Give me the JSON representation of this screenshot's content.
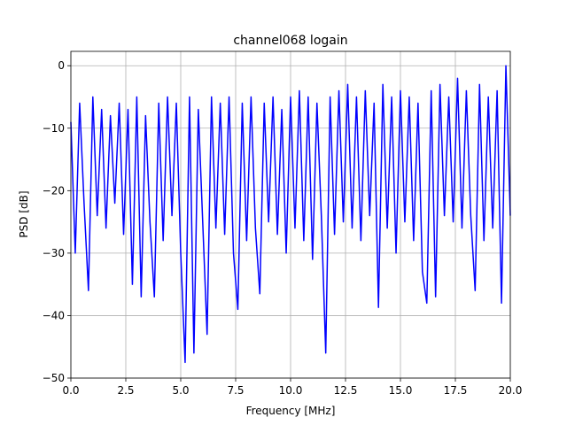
{
  "chart_data": {
    "type": "line",
    "title": "channel068 logain",
    "xlabel": "Frequency [MHz]",
    "ylabel": "PSD [dB]",
    "color": "#0000ff",
    "grid": true,
    "x": [
      0,
      0.2,
      0.4,
      0.6,
      0.8,
      1.0,
      1.2,
      1.4,
      1.6,
      1.8,
      2.0,
      2.2,
      2.4,
      2.6,
      2.8,
      3.0,
      3.2,
      3.4,
      3.6,
      3.8,
      4.0,
      4.2,
      4.4,
      4.6,
      4.8,
      5.0,
      5.2,
      5.4,
      5.6,
      5.8,
      6.0,
      6.2,
      6.4,
      6.6,
      6.8,
      7.0,
      7.2,
      7.4,
      7.6,
      7.8,
      8.0,
      8.2,
      8.4,
      8.6,
      8.8,
      9.0,
      9.2,
      9.4,
      9.6,
      9.8,
      10.0,
      10.2,
      10.4,
      10.6,
      10.8,
      11.0,
      11.2,
      11.4,
      11.6,
      11.8,
      12.0,
      12.2,
      12.4,
      12.6,
      12.8,
      13.0,
      13.2,
      13.4,
      13.6,
      13.8,
      14.0,
      14.2,
      14.4,
      14.6,
      14.8,
      15.0,
      15.2,
      15.4,
      15.6,
      15.8,
      16.0,
      16.2,
      16.4,
      16.6,
      16.8,
      17.0,
      17.2,
      17.4,
      17.6,
      17.8,
      18.0,
      18.2,
      18.4,
      18.6,
      18.8,
      19.0,
      19.2,
      19.4,
      19.6,
      19.8,
      20.0
    ],
    "values": [
      -9,
      -30,
      -6,
      -22,
      -36,
      -5,
      -24,
      -7,
      -26,
      -8,
      -22,
      -6,
      -27,
      -7,
      -35,
      -5,
      -37,
      -8,
      -25,
      -37,
      -6,
      -28,
      -5,
      -24,
      -6,
      -30,
      -47.5,
      -5,
      -46,
      -7,
      -25,
      -43,
      -5,
      -26,
      -6,
      -27,
      -5,
      -30,
      -39,
      -6,
      -28,
      -5,
      -26,
      -36.5,
      -6,
      -25,
      -5,
      -27,
      -7,
      -30,
      -5,
      -26,
      -4,
      -28,
      -5,
      -31,
      -6,
      -24,
      -46,
      -5,
      -27,
      -4,
      -25,
      -3,
      -26,
      -5,
      -28,
      -4,
      -24,
      -6,
      -38.7,
      -3,
      -26,
      -5,
      -30,
      -4,
      -25,
      -5,
      -28,
      -6,
      -33,
      -38,
      -4,
      -37,
      -3,
      -24,
      -5,
      -25,
      -2,
      -26,
      -4,
      -24,
      -36,
      -3,
      -28,
      -5,
      -26,
      -4,
      -38,
      0,
      -24
    ],
    "xlim": [
      0,
      20
    ],
    "xticks": [
      {
        "value": 0,
        "label": "0.0"
      },
      {
        "value": 2.5,
        "label": "2.5"
      },
      {
        "value": 5,
        "label": "5.0"
      },
      {
        "value": 7.5,
        "label": "7.5"
      },
      {
        "value": 10,
        "label": "10.0"
      },
      {
        "value": 12.5,
        "label": "12.5"
      },
      {
        "value": 15,
        "label": "15.0"
      },
      {
        "value": 17.5,
        "label": "17.5"
      },
      {
        "value": 20,
        "label": "20.0"
      }
    ],
    "ylim": [
      -50,
      2.3
    ],
    "yticks": [
      {
        "value": -50,
        "label": "−50"
      },
      {
        "value": -40,
        "label": "−40"
      },
      {
        "value": -30,
        "label": "−30"
      },
      {
        "value": -20,
        "label": "−20"
      },
      {
        "value": -10,
        "label": "−10"
      },
      0
    ]
  }
}
